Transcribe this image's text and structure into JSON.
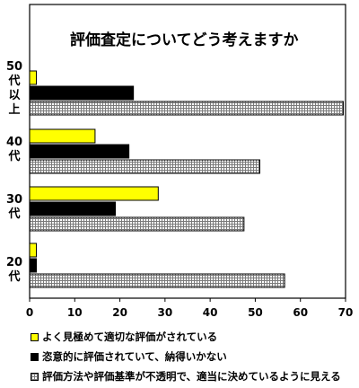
{
  "chart_data": {
    "type": "bar",
    "orientation": "horizontal",
    "title": "評価査定についてどう考えますか",
    "categories": [
      "50代以上",
      "40代",
      "30代",
      "20代"
    ],
    "category_labels": [
      [
        "50",
        "代",
        "以",
        "上"
      ],
      [
        "40",
        "代"
      ],
      [
        "30",
        "代"
      ],
      [
        "20",
        "代"
      ]
    ],
    "series": [
      {
        "name": "よく見極めて適切な評価がされている",
        "color": "#ffff00",
        "pattern": "solid",
        "values": [
          1.5,
          14.5,
          28.5,
          1.5
        ]
      },
      {
        "name": "恣意的に評価されていて、納得いかない",
        "color": "#000000",
        "pattern": "solid",
        "values": [
          23,
          22,
          19,
          1.5
        ]
      },
      {
        "name": "評価方法や評価基準が不透明で、適当に決めているように見える",
        "color": "#c0c0c0",
        "pattern": "grid",
        "values": [
          69.5,
          51,
          47.5,
          56.5
        ]
      }
    ],
    "xlim": [
      0,
      70
    ],
    "xticks": [
      "0",
      "10",
      "20",
      "30",
      "40",
      "50",
      "60",
      "70"
    ],
    "grid": false,
    "legend_position": "bottom"
  }
}
